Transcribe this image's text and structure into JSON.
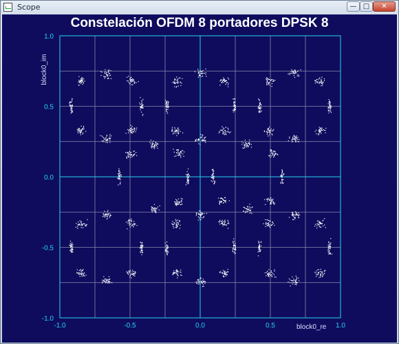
{
  "window": {
    "title": "Scope",
    "buttons": {
      "minimize": "—",
      "maximize": "□",
      "close": "✕"
    }
  },
  "colors": {
    "background": "#0f0c5e",
    "grid": "#8a8aa8",
    "axes": "#24d3f0",
    "points": "#ffffff",
    "title": "#ffffff"
  },
  "chart_data": {
    "type": "scatter",
    "title": "Constelación OFDM 8 portadores DPSK 8",
    "xlabel": "block0_re",
    "ylabel": "block0_im",
    "xlim": [
      -1.0,
      1.0
    ],
    "ylim": [
      -1.0,
      1.0
    ],
    "x_ticks": [
      "-1.0",
      "-0.5",
      "0.0",
      "0.5",
      "1.0"
    ],
    "y_ticks": [
      "1.0",
      "0.5",
      "0.0",
      "-0.5",
      "-1.0"
    ],
    "grid": true,
    "grid_lines_x": [
      -0.75,
      -0.5,
      -0.25,
      0.25,
      0.5,
      0.75
    ],
    "grid_lines_y": [
      0.75,
      0.5,
      0.25,
      -0.25,
      -0.5,
      -0.75
    ],
    "clusters": [
      {
        "x": -0.85,
        "y": 0.68
      },
      {
        "x": -0.67,
        "y": 0.73
      },
      {
        "x": -0.49,
        "y": 0.68
      },
      {
        "x": -0.17,
        "y": 0.68
      },
      {
        "x": 0.0,
        "y": 0.74
      },
      {
        "x": 0.17,
        "y": 0.68
      },
      {
        "x": 0.49,
        "y": 0.68
      },
      {
        "x": 0.67,
        "y": 0.74
      },
      {
        "x": 0.85,
        "y": 0.68
      },
      {
        "x": -0.92,
        "y": 0.5
      },
      {
        "x": -0.42,
        "y": 0.5
      },
      {
        "x": -0.24,
        "y": 0.5
      },
      {
        "x": 0.24,
        "y": 0.5
      },
      {
        "x": 0.42,
        "y": 0.5
      },
      {
        "x": 0.92,
        "y": 0.5
      },
      {
        "x": -0.85,
        "y": 0.33
      },
      {
        "x": -0.67,
        "y": 0.27
      },
      {
        "x": -0.49,
        "y": 0.33
      },
      {
        "x": -0.17,
        "y": 0.33
      },
      {
        "x": 0.0,
        "y": 0.27
      },
      {
        "x": 0.17,
        "y": 0.33
      },
      {
        "x": 0.49,
        "y": 0.33
      },
      {
        "x": 0.67,
        "y": 0.27
      },
      {
        "x": 0.85,
        "y": 0.33
      },
      {
        "x": -0.33,
        "y": 0.23
      },
      {
        "x": -0.15,
        "y": 0.17
      },
      {
        "x": 0.33,
        "y": 0.23
      },
      {
        "x": 0.52,
        "y": 0.17
      },
      {
        "x": -0.58,
        "y": 0.0
      },
      {
        "x": -0.09,
        "y": 0.0
      },
      {
        "x": 0.09,
        "y": 0.0
      },
      {
        "x": 0.58,
        "y": 0.0
      },
      {
        "x": -0.5,
        "y": 0.17
      },
      {
        "x": -0.16,
        "y": -0.17
      },
      {
        "x": 0.16,
        "y": -0.17
      },
      {
        "x": 0.5,
        "y": -0.17
      },
      {
        "x": -0.33,
        "y": -0.23
      },
      {
        "x": 0.33,
        "y": -0.23
      },
      {
        "x": -0.85,
        "y": -0.33
      },
      {
        "x": -0.67,
        "y": -0.27
      },
      {
        "x": -0.49,
        "y": -0.33
      },
      {
        "x": -0.17,
        "y": -0.33
      },
      {
        "x": 0.0,
        "y": -0.27
      },
      {
        "x": 0.17,
        "y": -0.33
      },
      {
        "x": 0.49,
        "y": -0.33
      },
      {
        "x": 0.67,
        "y": -0.27
      },
      {
        "x": 0.85,
        "y": -0.33
      },
      {
        "x": -0.92,
        "y": -0.5
      },
      {
        "x": -0.42,
        "y": -0.5
      },
      {
        "x": -0.24,
        "y": -0.5
      },
      {
        "x": 0.24,
        "y": -0.5
      },
      {
        "x": 0.42,
        "y": -0.5
      },
      {
        "x": 0.92,
        "y": -0.5
      },
      {
        "x": -0.85,
        "y": -0.68
      },
      {
        "x": -0.67,
        "y": -0.73
      },
      {
        "x": -0.49,
        "y": -0.68
      },
      {
        "x": -0.17,
        "y": -0.68
      },
      {
        "x": 0.0,
        "y": -0.74
      },
      {
        "x": 0.17,
        "y": -0.68
      },
      {
        "x": 0.49,
        "y": -0.68
      },
      {
        "x": 0.67,
        "y": -0.74
      },
      {
        "x": 0.85,
        "y": -0.68
      }
    ]
  }
}
